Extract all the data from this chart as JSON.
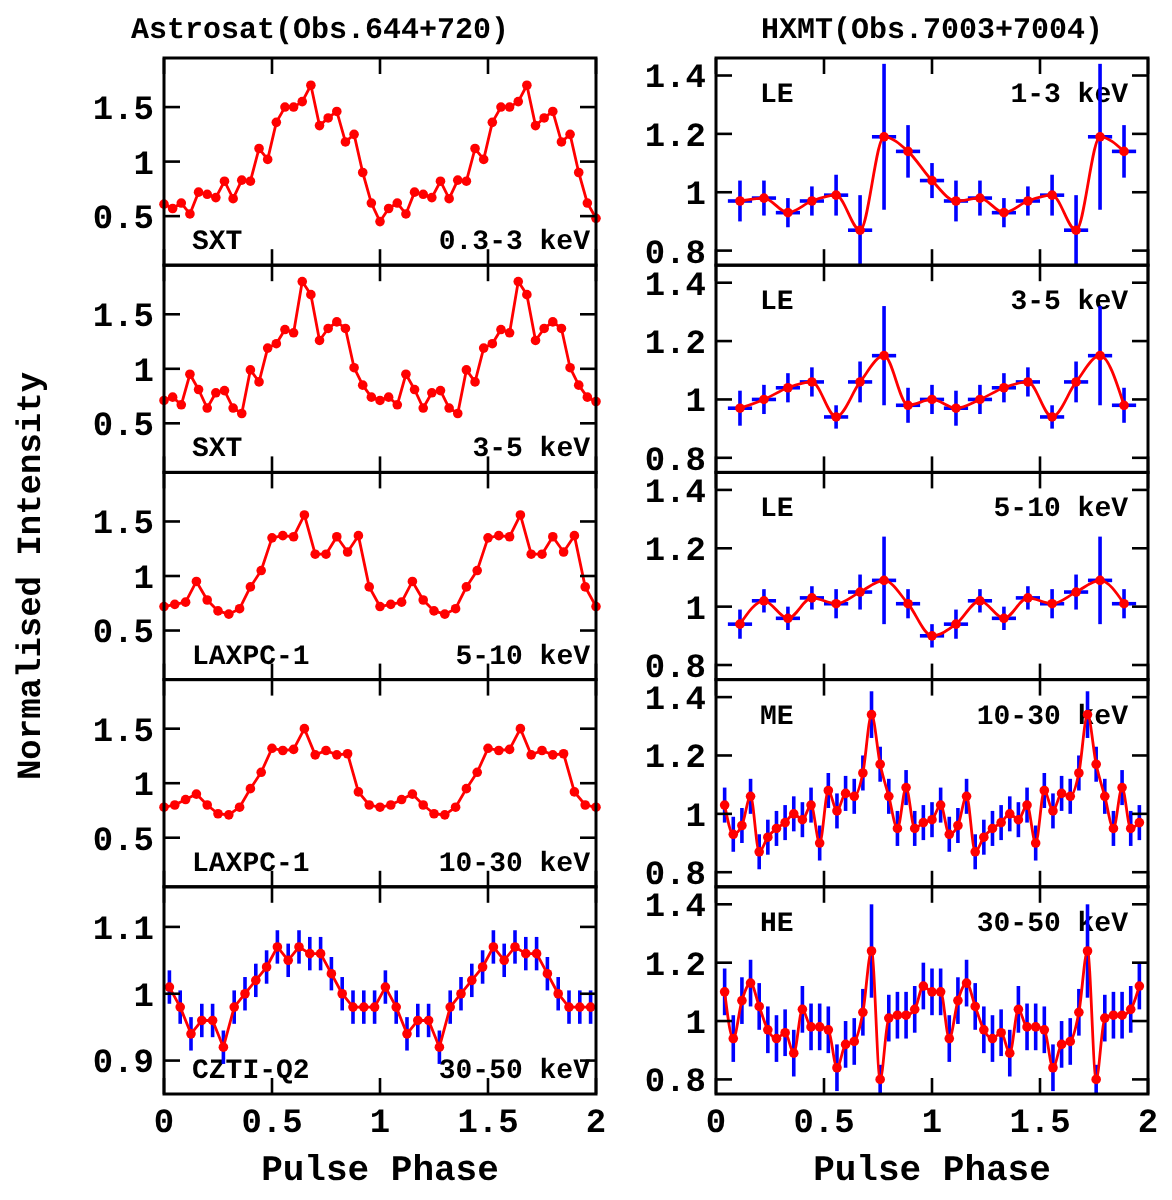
{
  "chart_data": [
    {
      "type": "line",
      "title": "Astrosat(Obs.644+720)",
      "xlim": [
        0,
        2
      ],
      "xticks": [
        0,
        0.5,
        1,
        1.5,
        2
      ],
      "ylim": [
        0.05,
        1.95
      ],
      "yticks": [
        0.5,
        1,
        1.5
      ],
      "tick_labels": "y",
      "marker": "circle",
      "annotations": [
        "SXT",
        "0.3-3 keV"
      ],
      "series": [
        {
          "color": "#ff0000",
          "x": [
            0,
            0.04,
            0.08,
            0.12,
            0.16,
            0.2,
            0.24,
            0.28,
            0.32,
            0.36,
            0.4,
            0.44,
            0.48,
            0.52,
            0.56,
            0.6,
            0.64,
            0.68,
            0.72,
            0.76,
            0.8,
            0.84,
            0.88,
            0.92,
            0.96,
            1,
            1.04,
            1.08,
            1.12,
            1.16,
            1.2,
            1.24,
            1.28,
            1.32,
            1.36,
            1.4,
            1.44,
            1.48,
            1.52,
            1.56,
            1.6,
            1.64,
            1.68,
            1.72,
            1.76,
            1.8,
            1.84,
            1.88,
            1.92,
            1.96,
            2
          ],
          "values": [
            0.61,
            0.57,
            0.62,
            0.52,
            0.72,
            0.7,
            0.67,
            0.82,
            0.66,
            0.83,
            0.82,
            1.12,
            1.02,
            1.36,
            1.5,
            1.5,
            1.55,
            1.7,
            1.33,
            1.4,
            1.46,
            1.18,
            1.25,
            0.9,
            0.62,
            0.45,
            0.57,
            0.62,
            0.52,
            0.72,
            0.7,
            0.67,
            0.82,
            0.66,
            0.83,
            0.82,
            1.12,
            1.02,
            1.36,
            1.5,
            1.5,
            1.55,
            1.7,
            1.33,
            1.4,
            1.46,
            1.18,
            1.25,
            0.9,
            0.62,
            0.48
          ]
        }
      ]
    },
    {
      "type": "line",
      "xlim": [
        0,
        2
      ],
      "xticks": [
        0,
        0.5,
        1,
        1.5,
        2
      ],
      "ylim": [
        0.05,
        1.95
      ],
      "yticks": [
        0.5,
        1,
        1.5
      ],
      "tick_labels": "y",
      "marker": "circle",
      "annotations": [
        "SXT",
        "3-5 keV"
      ],
      "series": [
        {
          "color": "#ff0000",
          "x": [
            0,
            0.04,
            0.08,
            0.12,
            0.16,
            0.2,
            0.24,
            0.28,
            0.32,
            0.36,
            0.4,
            0.44,
            0.48,
            0.52,
            0.56,
            0.6,
            0.64,
            0.68,
            0.72,
            0.76,
            0.8,
            0.84,
            0.88,
            0.92,
            0.96,
            1,
            1.04,
            1.08,
            1.12,
            1.16,
            1.2,
            1.24,
            1.28,
            1.32,
            1.36,
            1.4,
            1.44,
            1.48,
            1.52,
            1.56,
            1.6,
            1.64,
            1.68,
            1.72,
            1.76,
            1.8,
            1.84,
            1.88,
            1.92,
            1.96,
            2
          ],
          "values": [
            0.71,
            0.74,
            0.67,
            0.95,
            0.81,
            0.64,
            0.78,
            0.8,
            0.64,
            0.59,
            0.99,
            0.88,
            1.19,
            1.23,
            1.36,
            1.33,
            1.8,
            1.68,
            1.26,
            1.37,
            1.43,
            1.37,
            1.01,
            0.85,
            0.74,
            0.71,
            0.74,
            0.67,
            0.95,
            0.81,
            0.64,
            0.78,
            0.8,
            0.64,
            0.59,
            0.99,
            0.88,
            1.19,
            1.23,
            1.36,
            1.33,
            1.8,
            1.68,
            1.26,
            1.37,
            1.43,
            1.37,
            1.01,
            0.85,
            0.74,
            0.7
          ]
        }
      ]
    },
    {
      "type": "line",
      "ylabel": "Normalised Intensity",
      "xlim": [
        0,
        2
      ],
      "xticks": [
        0,
        0.5,
        1,
        1.5,
        2
      ],
      "ylim": [
        0.05,
        1.95
      ],
      "yticks": [
        0.5,
        1,
        1.5
      ],
      "tick_labels": "y",
      "marker": "circle",
      "annotations": [
        "LAXPC-1",
        "5-10 keV"
      ],
      "series": [
        {
          "color": "#ff0000",
          "x": [
            0,
            0.05,
            0.1,
            0.15,
            0.2,
            0.25,
            0.3,
            0.35,
            0.4,
            0.45,
            0.5,
            0.55,
            0.6,
            0.65,
            0.7,
            0.75,
            0.8,
            0.85,
            0.9,
            0.95,
            1,
            1.05,
            1.1,
            1.15,
            1.2,
            1.25,
            1.3,
            1.35,
            1.4,
            1.45,
            1.5,
            1.55,
            1.6,
            1.65,
            1.7,
            1.75,
            1.8,
            1.85,
            1.9,
            1.95,
            2
          ],
          "values": [
            0.72,
            0.74,
            0.76,
            0.95,
            0.78,
            0.68,
            0.65,
            0.7,
            0.9,
            1.05,
            1.35,
            1.37,
            1.36,
            1.56,
            1.2,
            1.2,
            1.36,
            1.22,
            1.37,
            0.9,
            0.72,
            0.74,
            0.76,
            0.95,
            0.78,
            0.68,
            0.65,
            0.7,
            0.9,
            1.05,
            1.35,
            1.37,
            1.36,
            1.56,
            1.2,
            1.2,
            1.36,
            1.22,
            1.37,
            0.9,
            0.72
          ]
        }
      ]
    },
    {
      "type": "line",
      "xlim": [
        0,
        2
      ],
      "xticks": [
        0,
        0.5,
        1,
        1.5,
        2
      ],
      "ylim": [
        0.05,
        1.95
      ],
      "yticks": [
        0.5,
        1,
        1.5
      ],
      "tick_labels": "y",
      "marker": "circle",
      "annotations": [
        "LAXPC-1",
        "10-30 keV"
      ],
      "series": [
        {
          "color": "#ff0000",
          "x": [
            0,
            0.05,
            0.1,
            0.15,
            0.2,
            0.25,
            0.3,
            0.35,
            0.4,
            0.45,
            0.5,
            0.55,
            0.6,
            0.65,
            0.7,
            0.75,
            0.8,
            0.85,
            0.9,
            0.95,
            1,
            1.05,
            1.1,
            1.15,
            1.2,
            1.25,
            1.3,
            1.35,
            1.4,
            1.45,
            1.5,
            1.55,
            1.6,
            1.65,
            1.7,
            1.75,
            1.8,
            1.85,
            1.9,
            1.95,
            2
          ],
          "values": [
            0.78,
            0.8,
            0.85,
            0.9,
            0.8,
            0.72,
            0.71,
            0.78,
            0.95,
            1.1,
            1.32,
            1.3,
            1.31,
            1.5,
            1.26,
            1.3,
            1.26,
            1.27,
            0.92,
            0.8,
            0.78,
            0.8,
            0.85,
            0.9,
            0.8,
            0.72,
            0.71,
            0.78,
            0.95,
            1.1,
            1.32,
            1.3,
            1.31,
            1.5,
            1.26,
            1.3,
            1.26,
            1.27,
            0.92,
            0.8,
            0.78
          ]
        }
      ]
    },
    {
      "type": "line",
      "xlabel": "Pulse Phase",
      "xlim": [
        0,
        2
      ],
      "xticks": [
        0,
        0.5,
        1,
        1.5,
        2
      ],
      "ylim": [
        0.85,
        1.16
      ],
      "yticks": [
        0.9,
        1,
        1.1
      ],
      "marker": "circle",
      "annotations": [
        "CZTI-Q2",
        "30-50 keV"
      ],
      "series": [
        {
          "color": "#ff0000",
          "x": [
            0.025,
            0.075,
            0.125,
            0.175,
            0.225,
            0.275,
            0.325,
            0.375,
            0.425,
            0.475,
            0.525,
            0.575,
            0.625,
            0.675,
            0.725,
            0.775,
            0.825,
            0.875,
            0.925,
            0.975,
            1.025,
            1.075,
            1.125,
            1.175,
            1.225,
            1.275,
            1.325,
            1.375,
            1.425,
            1.475,
            1.525,
            1.575,
            1.625,
            1.675,
            1.725,
            1.775,
            1.825,
            1.875,
            1.925,
            1.975
          ],
          "values": [
            1.01,
            0.98,
            0.94,
            0.96,
            0.96,
            0.92,
            0.98,
            1.0,
            1.02,
            1.04,
            1.07,
            1.05,
            1.07,
            1.06,
            1.06,
            1.03,
            1.0,
            0.98,
            0.98,
            0.98,
            1.01,
            0.98,
            0.94,
            0.96,
            0.96,
            0.92,
            0.98,
            1.0,
            1.02,
            1.04,
            1.07,
            1.05,
            1.07,
            1.06,
            1.06,
            1.03,
            1.0,
            0.98,
            0.98,
            0.98
          ],
          "errors": [
            0.025,
            0.025,
            0.025,
            0.025,
            0.025,
            0.025,
            0.025,
            0.025,
            0.025,
            0.025,
            0.025,
            0.025,
            0.025,
            0.025,
            0.025,
            0.025,
            0.025,
            0.025,
            0.025,
            0.025,
            0.025,
            0.025,
            0.025,
            0.025,
            0.025,
            0.025,
            0.025,
            0.025,
            0.025,
            0.025,
            0.025,
            0.025,
            0.025,
            0.025,
            0.025,
            0.025,
            0.025,
            0.025,
            0.025,
            0.025
          ]
        }
      ]
    },
    {
      "type": "line",
      "title": "HXMT(Obs.7003+7004)",
      "xlim": [
        0,
        2
      ],
      "xticks": [
        0,
        0.5,
        1,
        1.5,
        2
      ],
      "ylim": [
        0.75,
        1.46
      ],
      "yticks": [
        0.8,
        1,
        1.2,
        1.4
      ],
      "tick_labels": "y",
      "marker": "circle",
      "annotations": [
        "LE",
        "1-3 keV"
      ],
      "series": [
        {
          "color": "#ff0000",
          "x": [
            0.111,
            0.222,
            0.333,
            0.444,
            0.556,
            0.667,
            0.778,
            0.889,
            1,
            1.111,
            1.222,
            1.333,
            1.444,
            1.556,
            1.667,
            1.778,
            1.889
          ],
          "values": [
            0.97,
            0.98,
            0.93,
            0.97,
            0.99,
            0.87,
            1.19,
            1.14,
            1.04,
            0.97,
            0.98,
            0.93,
            0.97,
            0.99,
            0.87,
            1.19,
            1.14
          ],
          "errors": [
            0.07,
            0.06,
            0.05,
            0.05,
            0.07,
            0.12,
            0.25,
            0.09,
            0.06,
            0.07,
            0.06,
            0.05,
            0.05,
            0.07,
            0.12,
            0.25,
            0.09
          ],
          "xerrors": [
            0.056,
            0.056,
            0.056,
            0.056,
            0.056,
            0.056,
            0.056,
            0.056,
            0.056,
            0.056,
            0.056,
            0.056,
            0.056,
            0.056,
            0.056,
            0.056,
            0.056
          ]
        }
      ]
    },
    {
      "type": "line",
      "xlim": [
        0,
        2
      ],
      "xticks": [
        0,
        0.5,
        1,
        1.5,
        2
      ],
      "ylim": [
        0.75,
        1.46
      ],
      "yticks": [
        0.8,
        1,
        1.2,
        1.4
      ],
      "tick_labels": "y",
      "marker": "circle",
      "annotations": [
        "LE",
        "3-5 keV"
      ],
      "series": [
        {
          "color": "#ff0000",
          "x": [
            0.111,
            0.222,
            0.333,
            0.444,
            0.556,
            0.667,
            0.778,
            0.889,
            1,
            1.111,
            1.222,
            1.333,
            1.444,
            1.556,
            1.667,
            1.778,
            1.889
          ],
          "values": [
            0.97,
            1.0,
            1.04,
            1.06,
            0.94,
            1.06,
            1.15,
            0.98,
            1.0,
            0.97,
            1.0,
            1.04,
            1.06,
            0.94,
            1.06,
            1.15,
            0.98
          ],
          "errors": [
            0.06,
            0.05,
            0.05,
            0.05,
            0.04,
            0.07,
            0.17,
            0.06,
            0.05,
            0.06,
            0.05,
            0.05,
            0.05,
            0.04,
            0.07,
            0.17,
            0.06
          ],
          "xerrors": [
            0.056,
            0.056,
            0.056,
            0.056,
            0.056,
            0.056,
            0.056,
            0.056,
            0.056,
            0.056,
            0.056,
            0.056,
            0.056,
            0.056,
            0.056,
            0.056,
            0.056
          ]
        }
      ]
    },
    {
      "type": "line",
      "xlim": [
        0,
        2
      ],
      "xticks": [
        0,
        0.5,
        1,
        1.5,
        2
      ],
      "ylim": [
        0.75,
        1.46
      ],
      "yticks": [
        0.8,
        1,
        1.2,
        1.4
      ],
      "tick_labels": "y",
      "marker": "circle",
      "annotations": [
        "LE",
        "5-10 keV"
      ],
      "series": [
        {
          "color": "#ff0000",
          "x": [
            0.111,
            0.222,
            0.333,
            0.444,
            0.556,
            0.667,
            0.778,
            0.889,
            1,
            1.111,
            1.222,
            1.333,
            1.444,
            1.556,
            1.667,
            1.778,
            1.889
          ],
          "values": [
            0.94,
            1.02,
            0.96,
            1.03,
            1.01,
            1.05,
            1.09,
            1.01,
            0.9,
            0.94,
            1.02,
            0.96,
            1.03,
            1.01,
            1.05,
            1.09,
            1.01
          ],
          "errors": [
            0.05,
            0.04,
            0.04,
            0.04,
            0.05,
            0.06,
            0.15,
            0.05,
            0.04,
            0.05,
            0.04,
            0.04,
            0.04,
            0.05,
            0.06,
            0.15,
            0.05
          ],
          "xerrors": [
            0.056,
            0.056,
            0.056,
            0.056,
            0.056,
            0.056,
            0.056,
            0.056,
            0.056,
            0.056,
            0.056,
            0.056,
            0.056,
            0.056,
            0.056,
            0.056,
            0.056
          ]
        }
      ]
    },
    {
      "type": "line",
      "xlim": [
        0,
        2
      ],
      "xticks": [
        0,
        0.5,
        1,
        1.5,
        2
      ],
      "ylim": [
        0.75,
        1.46
      ],
      "yticks": [
        0.8,
        1,
        1.2,
        1.4
      ],
      "tick_labels": "y",
      "marker": "circle",
      "annotations": [
        "ME",
        "10-30 keV"
      ],
      "series": [
        {
          "color": "#ff0000",
          "x": [
            0.04,
            0.08,
            0.12,
            0.16,
            0.2,
            0.24,
            0.28,
            0.32,
            0.36,
            0.4,
            0.44,
            0.48,
            0.52,
            0.56,
            0.6,
            0.64,
            0.68,
            0.72,
            0.76,
            0.8,
            0.84,
            0.88,
            0.92,
            0.96,
            1,
            1.04,
            1.08,
            1.12,
            1.16,
            1.2,
            1.24,
            1.28,
            1.32,
            1.36,
            1.4,
            1.44,
            1.48,
            1.52,
            1.56,
            1.6,
            1.64,
            1.68,
            1.72,
            1.76,
            1.8,
            1.84,
            1.88,
            1.92,
            1.96
          ],
          "values": [
            1.03,
            0.93,
            0.96,
            1.06,
            0.87,
            0.92,
            0.95,
            0.97,
            1.0,
            0.98,
            1.03,
            0.9,
            1.08,
            1.01,
            1.07,
            1.06,
            1.14,
            1.34,
            1.17,
            1.06,
            0.95,
            1.09,
            0.95,
            0.97,
            0.98,
            1.03,
            0.93,
            0.96,
            1.06,
            0.87,
            0.92,
            0.95,
            0.97,
            1.0,
            0.98,
            1.03,
            0.9,
            1.08,
            1.01,
            1.07,
            1.06,
            1.14,
            1.34,
            1.17,
            1.06,
            0.95,
            1.09,
            0.95,
            0.97
          ],
          "errors": [
            0.06,
            0.06,
            0.06,
            0.06,
            0.06,
            0.06,
            0.06,
            0.06,
            0.06,
            0.06,
            0.06,
            0.06,
            0.06,
            0.06,
            0.06,
            0.06,
            0.06,
            0.08,
            0.06,
            0.06,
            0.06,
            0.06,
            0.06,
            0.06,
            0.06,
            0.06,
            0.06,
            0.06,
            0.06,
            0.06,
            0.06,
            0.06,
            0.06,
            0.06,
            0.06,
            0.06,
            0.06,
            0.06,
            0.06,
            0.06,
            0.06,
            0.06,
            0.08,
            0.06,
            0.06,
            0.06,
            0.06,
            0.06,
            0.06
          ]
        }
      ]
    },
    {
      "type": "line",
      "xlabel": "Pulse Phase",
      "xlim": [
        0,
        2
      ],
      "xticks": [
        0,
        0.5,
        1,
        1.5,
        2
      ],
      "ylim": [
        0.75,
        1.46
      ],
      "yticks": [
        0.8,
        1,
        1.2,
        1.4
      ],
      "marker": "circle",
      "annotations": [
        "HE",
        "30-50 keV"
      ],
      "series": [
        {
          "color": "#ff0000",
          "x": [
            0.04,
            0.08,
            0.12,
            0.16,
            0.2,
            0.24,
            0.28,
            0.32,
            0.36,
            0.4,
            0.44,
            0.48,
            0.52,
            0.56,
            0.6,
            0.64,
            0.68,
            0.72,
            0.76,
            0.8,
            0.84,
            0.88,
            0.92,
            0.96,
            1,
            1.04,
            1.08,
            1.12,
            1.16,
            1.2,
            1.24,
            1.28,
            1.32,
            1.36,
            1.4,
            1.44,
            1.48,
            1.52,
            1.56,
            1.6,
            1.64,
            1.68,
            1.72,
            1.76,
            1.8,
            1.84,
            1.88,
            1.92,
            1.96
          ],
          "values": [
            1.1,
            0.94,
            1.07,
            1.13,
            1.05,
            0.97,
            0.94,
            0.96,
            0.89,
            1.04,
            0.98,
            0.98,
            0.97,
            0.84,
            0.92,
            0.93,
            1.03,
            1.24,
            0.8,
            1.01,
            1.02,
            1.02,
            1.04,
            1.12,
            1.1,
            1.1,
            0.94,
            1.07,
            1.13,
            1.05,
            0.97,
            0.94,
            0.96,
            0.89,
            1.04,
            0.98,
            0.98,
            0.97,
            0.84,
            0.92,
            0.93,
            1.03,
            1.24,
            0.8,
            1.01,
            1.02,
            1.02,
            1.04,
            1.12
          ],
          "errors": [
            0.08,
            0.08,
            0.08,
            0.08,
            0.08,
            0.08,
            0.08,
            0.08,
            0.08,
            0.08,
            0.08,
            0.08,
            0.08,
            0.08,
            0.08,
            0.08,
            0.08,
            0.16,
            0.05,
            0.08,
            0.08,
            0.08,
            0.08,
            0.08,
            0.08,
            0.08,
            0.08,
            0.08,
            0.08,
            0.08,
            0.08,
            0.08,
            0.08,
            0.08,
            0.08,
            0.08,
            0.08,
            0.08,
            0.08,
            0.08,
            0.08,
            0.08,
            0.16,
            0.05,
            0.08,
            0.08,
            0.08,
            0.08,
            0.08
          ]
        }
      ]
    }
  ]
}
